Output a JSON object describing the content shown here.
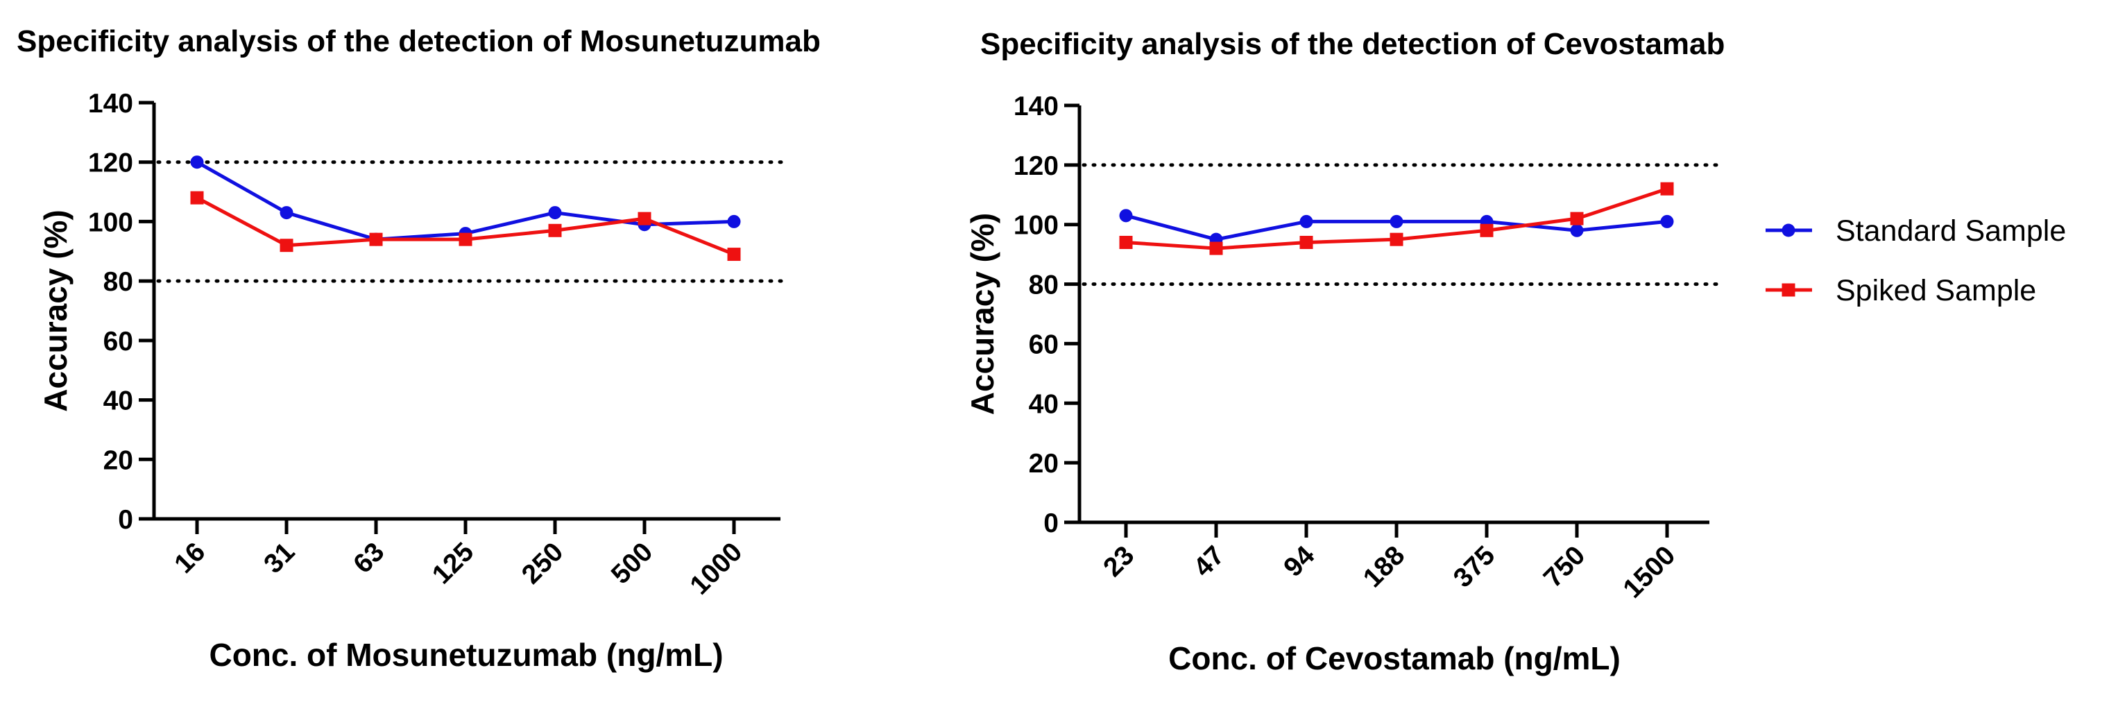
{
  "chart_data": [
    {
      "type": "line",
      "title": "Specificity analysis of the detection of Mosunetuzumab",
      "xlabel": "Conc. of Mosunetuzumab (ng/mL)",
      "ylabel": "Accuracy (%)",
      "categories": [
        "16",
        "31",
        "63",
        "125",
        "250",
        "500",
        "1000"
      ],
      "ylim": [
        0,
        140
      ],
      "yticks": [
        "0",
        "20",
        "40",
        "60",
        "80",
        "100",
        "120",
        "140"
      ],
      "reference_lines": [
        80,
        120
      ],
      "series": [
        {
          "name": "Standard Sample",
          "marker": "circle",
          "color": "#1010e0",
          "values": [
            120,
            103,
            94,
            96,
            103,
            99,
            100
          ]
        },
        {
          "name": "Spiked Sample",
          "marker": "square",
          "color": "#ee1111",
          "values": [
            108,
            92,
            94,
            94,
            97,
            101,
            89
          ]
        }
      ]
    },
    {
      "type": "line",
      "title": "Specificity analysis of the detection of Cevostamab",
      "xlabel": "Conc. of Cevostamab (ng/mL)",
      "ylabel": "Accuracy (%)",
      "categories": [
        "23",
        "47",
        "94",
        "188",
        "375",
        "750",
        "1500"
      ],
      "ylim": [
        0,
        140
      ],
      "yticks": [
        "0",
        "20",
        "40",
        "60",
        "80",
        "100",
        "120",
        "140"
      ],
      "reference_lines": [
        80,
        120
      ],
      "series": [
        {
          "name": "Standard Sample",
          "marker": "circle",
          "color": "#1010e0",
          "values": [
            103,
            95,
            101,
            101,
            101,
            98,
            101
          ]
        },
        {
          "name": "Spiked Sample",
          "marker": "square",
          "color": "#ee1111",
          "values": [
            94,
            92,
            94,
            95,
            98,
            102,
            112
          ]
        }
      ]
    }
  ],
  "legend": {
    "position": "right",
    "items": [
      {
        "label": "Standard Sample",
        "marker": "circle",
        "color": "#1010e0"
      },
      {
        "label": "Spiked Sample",
        "marker": "square",
        "color": "#ee1111"
      }
    ]
  }
}
